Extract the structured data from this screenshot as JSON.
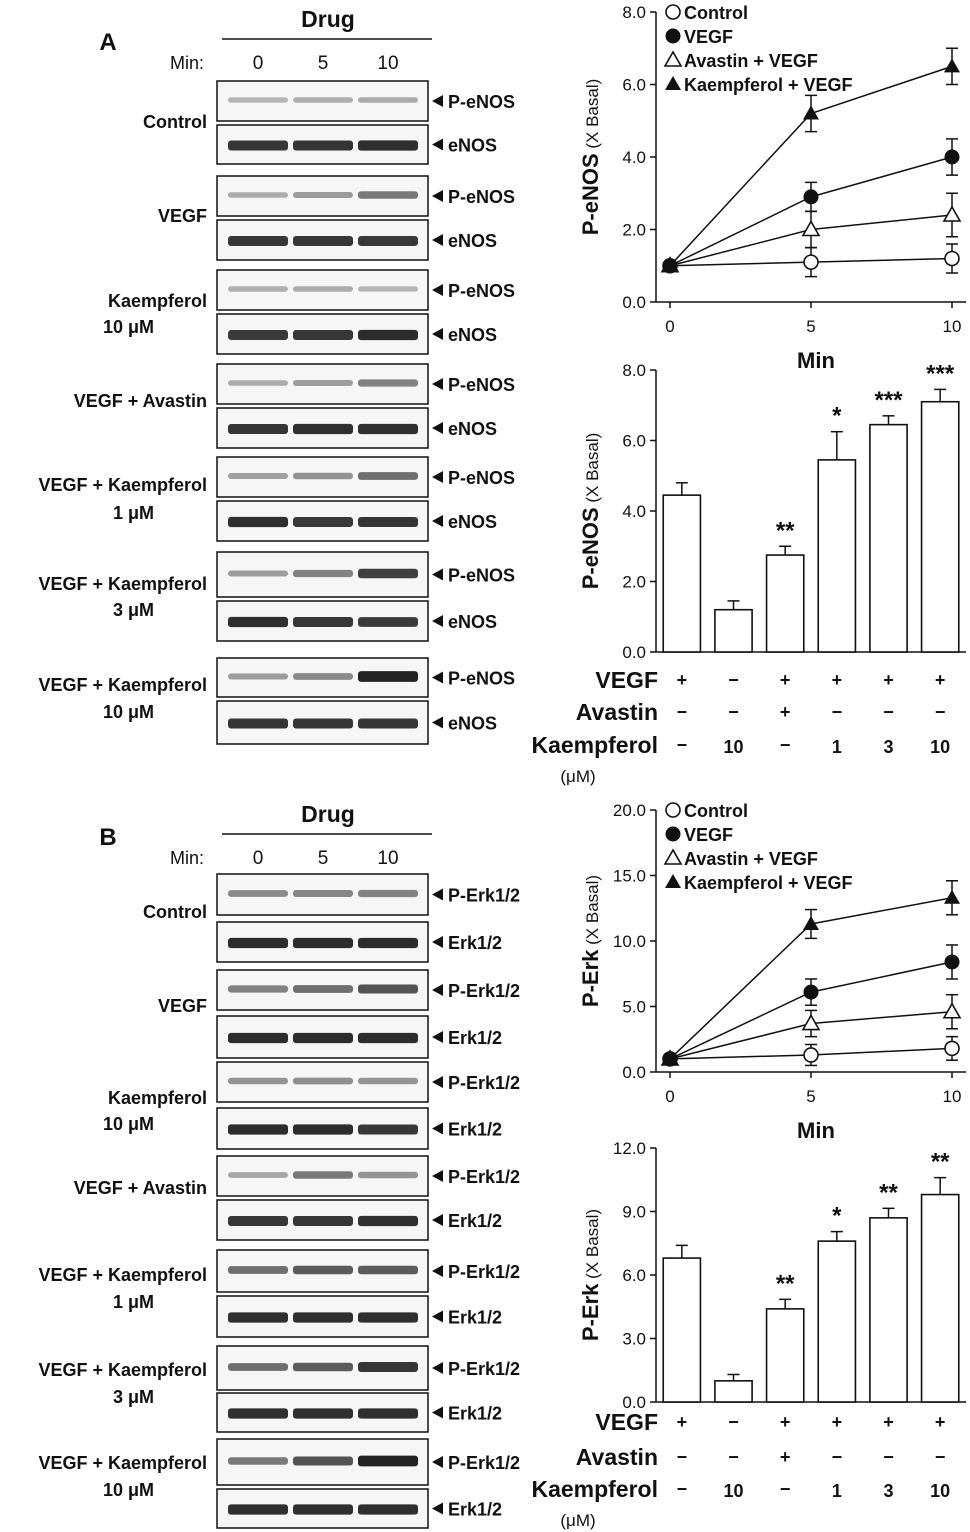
{
  "panels": [
    {
      "letter": "A",
      "blot": {
        "header": "Drug",
        "min_label": "Min:",
        "time_points": [
          "0",
          "5",
          "10"
        ],
        "protein_phospho": "P-eNOS",
        "protein_total": "eNOS",
        "conditions": [
          {
            "line1": "Control",
            "line2": "",
            "p_intensity": [
              0.18,
              0.2,
              0.22
            ],
            "t_intensity": [
              0.85,
              0.86,
              0.88
            ]
          },
          {
            "line1": "VEGF",
            "line2": "",
            "p_intensity": [
              0.22,
              0.3,
              0.5
            ],
            "t_intensity": [
              0.85,
              0.85,
              0.84
            ]
          },
          {
            "line1": "Kaempferol",
            "line2": "10 μM",
            "p_intensity": [
              0.2,
              0.22,
              0.18
            ],
            "t_intensity": [
              0.84,
              0.85,
              0.9
            ]
          },
          {
            "line1": "VEGF + Avastin",
            "line2": "",
            "p_intensity": [
              0.22,
              0.3,
              0.45
            ],
            "t_intensity": [
              0.86,
              0.88,
              0.88
            ]
          },
          {
            "line1": "VEGF + Kaempferol",
            "line2": "1 μM",
            "p_intensity": [
              0.28,
              0.35,
              0.55
            ],
            "t_intensity": [
              0.88,
              0.84,
              0.86
            ]
          },
          {
            "line1": "VEGF + Kaempferol",
            "line2": "3 μM",
            "p_intensity": [
              0.3,
              0.45,
              0.8
            ],
            "t_intensity": [
              0.88,
              0.85,
              0.82
            ]
          },
          {
            "line1": "VEGF + Kaempferol",
            "line2": "10 μM",
            "p_intensity": [
              0.3,
              0.4,
              0.95
            ],
            "t_intensity": [
              0.86,
              0.86,
              0.86
            ]
          }
        ]
      }
    },
    {
      "letter": "B",
      "blot": {
        "header": "Drug",
        "min_label": "Min:",
        "time_points": [
          "0",
          "5",
          "10"
        ],
        "protein_phospho": "P-Erk1/2",
        "protein_total": "Erk1/2",
        "conditions": [
          {
            "line1": "Control",
            "line2": "",
            "p_intensity": [
              0.4,
              0.42,
              0.45
            ],
            "t_intensity": [
              0.9,
              0.9,
              0.9
            ]
          },
          {
            "line1": "VEGF",
            "line2": "",
            "p_intensity": [
              0.45,
              0.55,
              0.7
            ],
            "t_intensity": [
              0.9,
              0.9,
              0.9
            ]
          },
          {
            "line1": "Kaempferol",
            "line2": "10 μM",
            "p_intensity": [
              0.35,
              0.38,
              0.35
            ],
            "t_intensity": [
              0.9,
              0.9,
              0.85
            ]
          },
          {
            "line1": "VEGF + Avastin",
            "line2": "",
            "p_intensity": [
              0.25,
              0.5,
              0.35
            ],
            "t_intensity": [
              0.85,
              0.85,
              0.88
            ]
          },
          {
            "line1": "VEGF + Kaempferol",
            "line2": "1 μM",
            "p_intensity": [
              0.55,
              0.65,
              0.65
            ],
            "t_intensity": [
              0.88,
              0.88,
              0.88
            ]
          },
          {
            "line1": "VEGF + Kaempferol",
            "line2": "3 μM",
            "p_intensity": [
              0.55,
              0.65,
              0.85
            ],
            "t_intensity": [
              0.88,
              0.88,
              0.88
            ]
          },
          {
            "line1": "VEGF + Kaempferol",
            "line2": "10 μM",
            "p_intensity": [
              0.5,
              0.7,
              0.95
            ],
            "t_intensity": [
              0.88,
              0.88,
              0.88
            ]
          }
        ]
      }
    }
  ],
  "colors": {
    "ink": "#111111",
    "band": "#1a1a1a",
    "bar_fill": "#ffffff"
  },
  "chart_data": [
    {
      "type": "line",
      "ylabel_main": "P-eNOS",
      "ylabel_unit": " (X Basal)",
      "xlabel": "Min",
      "x": [
        0,
        5,
        10
      ],
      "xticks": [
        "0",
        "5",
        "10"
      ],
      "ylim": [
        0,
        8
      ],
      "yticks": [
        "0.0",
        "2.0",
        "4.0",
        "6.0",
        "8.0"
      ],
      "legend": {
        "position": "top-left",
        "marker_style": [
          "open-circle",
          "filled-circle",
          "open-triangle",
          "filled-triangle"
        ]
      },
      "series": [
        {
          "name": "Control",
          "values": [
            1.0,
            1.1,
            1.2
          ],
          "errors": [
            0,
            0.4,
            0.4
          ]
        },
        {
          "name": "VEGF",
          "values": [
            1.0,
            2.9,
            4.0
          ],
          "errors": [
            0,
            0.4,
            0.5
          ]
        },
        {
          "name": "Avastin + VEGF",
          "values": [
            1.0,
            2.0,
            2.4
          ],
          "errors": [
            0,
            0.5,
            0.6
          ]
        },
        {
          "name": "Kaempferol + VEGF",
          "values": [
            1.0,
            5.2,
            6.5
          ],
          "errors": [
            0,
            0.5,
            0.5
          ]
        }
      ]
    },
    {
      "type": "bar",
      "ylabel_main": "P-eNOS",
      "ylabel_unit": " (X Basal)",
      "ylim": [
        0,
        8
      ],
      "yticks": [
        "0.0",
        "2.0",
        "4.0",
        "6.0",
        "8.0"
      ],
      "values": [
        4.45,
        1.2,
        2.75,
        5.45,
        6.45,
        7.1
      ],
      "errors": [
        0.35,
        0.25,
        0.25,
        0.8,
        0.25,
        0.35
      ],
      "significance": [
        "",
        "",
        "**",
        "*",
        "***",
        "***"
      ],
      "conditions": {
        "rows": [
          {
            "label": "VEGF",
            "marks": [
              "+",
              "−",
              "+",
              "+",
              "+",
              "+"
            ]
          },
          {
            "label": "Avastin",
            "marks": [
              "−",
              "−",
              "+",
              "−",
              "−",
              "−"
            ]
          },
          {
            "label": "Kaempferol",
            "marks": [
              "−",
              "10",
              "−",
              "1",
              "3",
              "10"
            ]
          }
        ],
        "unit": "(μM)"
      }
    },
    {
      "type": "line",
      "ylabel_main": "P-Erk",
      "ylabel_unit": " (X Basal)",
      "xlabel": "Min",
      "x": [
        0,
        5,
        10
      ],
      "xticks": [
        "0",
        "5",
        "10"
      ],
      "ylim": [
        0,
        20
      ],
      "yticks": [
        "0.0",
        "5.0",
        "10.0",
        "15.0",
        "20.0"
      ],
      "legend": {
        "position": "top-left",
        "marker_style": [
          "open-circle",
          "filled-circle",
          "open-triangle",
          "filled-triangle"
        ]
      },
      "series": [
        {
          "name": "Control",
          "values": [
            1.0,
            1.3,
            1.8
          ],
          "errors": [
            0,
            0.8,
            0.9
          ]
        },
        {
          "name": "VEGF",
          "values": [
            1.0,
            6.1,
            8.4
          ],
          "errors": [
            0,
            1.0,
            1.3
          ]
        },
        {
          "name": "Avastin + VEGF",
          "values": [
            1.0,
            3.7,
            4.6
          ],
          "errors": [
            0,
            1.0,
            1.3
          ]
        },
        {
          "name": "Kaempferol + VEGF",
          "values": [
            1.0,
            11.3,
            13.3
          ],
          "errors": [
            0,
            1.1,
            1.3
          ]
        }
      ]
    },
    {
      "type": "bar",
      "ylabel_main": "P-Erk",
      "ylabel_unit": " (X Basal)",
      "ylim": [
        0,
        12
      ],
      "yticks": [
        "0.0",
        "3.0",
        "6.0",
        "9.0",
        "12.0"
      ],
      "values": [
        6.8,
        1.0,
        4.4,
        7.6,
        8.7,
        9.8
      ],
      "errors": [
        0.6,
        0.3,
        0.45,
        0.45,
        0.45,
        0.8
      ],
      "significance": [
        "",
        "",
        "**",
        "*",
        "**",
        "**"
      ],
      "conditions": {
        "rows": [
          {
            "label": "VEGF",
            "marks": [
              "+",
              "−",
              "+",
              "+",
              "+",
              "+"
            ]
          },
          {
            "label": "Avastin",
            "marks": [
              "−",
              "−",
              "+",
              "−",
              "−",
              "−"
            ]
          },
          {
            "label": "Kaempferol",
            "marks": [
              "−",
              "10",
              "−",
              "1",
              "3",
              "10"
            ]
          }
        ],
        "unit": "(μM)"
      }
    }
  ]
}
